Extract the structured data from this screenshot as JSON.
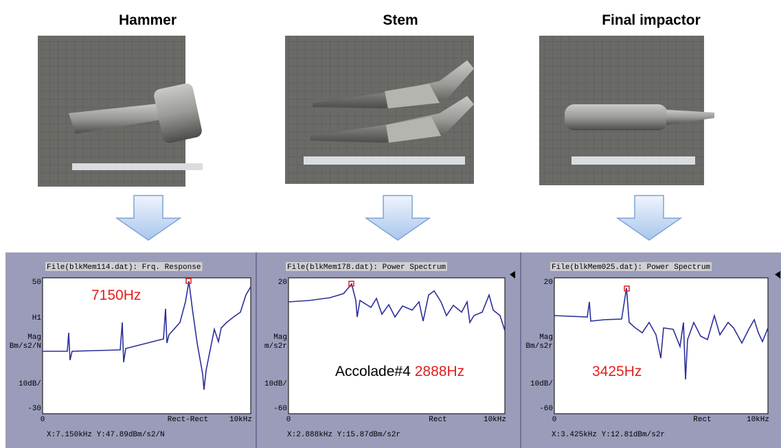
{
  "panels": [
    {
      "title": "Hammer",
      "plot": {
        "header": "File(blkMem114.dat): Frq. Response",
        "y_top": "50",
        "y_bottom": "-30",
        "side_labels": [
          "H1",
          "Mag",
          "Bm/s2/N",
          "10dB/"
        ],
        "x_left": "0",
        "x_mid": "Rect-Rect",
        "x_right": "10kHz",
        "readout": "X:7.150kHz Y:47.89dBm/s2/N",
        "annotation": [
          "7150Hz"
        ]
      }
    },
    {
      "title": "Stem",
      "plot": {
        "header": "File(blkMem178.dat): Power Spectrum",
        "y_top": "20",
        "y_bottom": "-60",
        "side_labels": [
          "Mag",
          "m/s2r",
          "10dB/"
        ],
        "x_left": "0",
        "x_mid": "Rect",
        "x_right": "10kHz",
        "readout": "X:2.888kHz Y:15.87dBm/s2r",
        "annotation": [
          "Accolade#4",
          "2888Hz"
        ]
      }
    },
    {
      "title": "Final impactor",
      "plot": {
        "header": "File(blkMem025.dat): Power Spectrum",
        "y_top": "20",
        "y_bottom": "-60",
        "side_labels": [
          "Mag",
          "Bm/s2r",
          "10dB/"
        ],
        "x_left": "0",
        "x_mid": "Rect",
        "x_right": "10kHz",
        "readout": "X:3.425kHz Y:12.81dBm/s2r",
        "annotation": [
          "3425Hz"
        ]
      }
    }
  ]
}
